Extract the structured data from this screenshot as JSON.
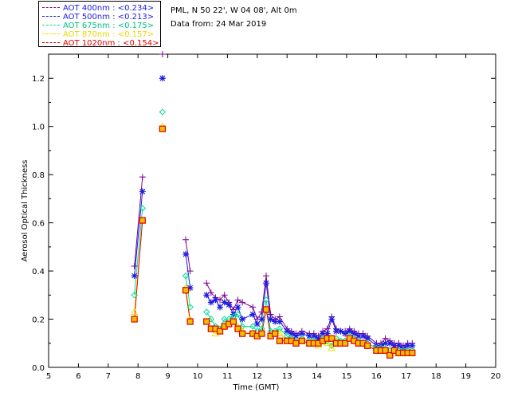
{
  "header": {
    "site": "PML, N 50 22', W 04 08', Alt 0m",
    "date": "Data from: 24 Mar 2019"
  },
  "legend": [
    {
      "label": "AOT  400nm : <0.234>",
      "color": "#7b0090"
    },
    {
      "label": "AOT  500nm : <0.213>",
      "color": "#1c1ce0"
    },
    {
      "label": "AOT  675nm : <0.175>",
      "color": "#00e090"
    },
    {
      "label": "AOT  870nm : <0.157>",
      "color": "#f0e000"
    },
    {
      "label": "AOT 1020nm : <0.154>",
      "color": "#e00000"
    }
  ],
  "chart_data": {
    "type": "scatter",
    "xlabel": "Time (GMT)",
    "ylabel": "Aerosol Optical Thickness",
    "xlim": [
      5,
      20
    ],
    "ylim": [
      0.0,
      1.3
    ],
    "xticks": [
      "5",
      "6",
      "7",
      "8",
      "9",
      "10",
      "11",
      "12",
      "13",
      "14",
      "15",
      "16",
      "17",
      "18",
      "19",
      "20"
    ],
    "yticks": [
      "0.0",
      "0.2",
      "0.4",
      "0.6",
      "0.8",
      "1.0",
      "1.2"
    ],
    "x": [
      7.88,
      8.15,
      8.82,
      9.6,
      9.75,
      10.3,
      10.45,
      10.6,
      10.75,
      10.9,
      11.05,
      11.2,
      11.35,
      11.5,
      11.85,
      12.0,
      12.15,
      12.3,
      12.45,
      12.6,
      12.75,
      13.0,
      13.15,
      13.3,
      13.5,
      13.75,
      13.9,
      14.05,
      14.2,
      14.35,
      14.5,
      14.65,
      14.8,
      14.95,
      15.1,
      15.25,
      15.4,
      15.55,
      15.7,
      16.0,
      16.15,
      16.3,
      16.45,
      16.6,
      16.75,
      16.9,
      17.05,
      17.2
    ],
    "series": [
      {
        "name": "AOT  400nm",
        "marker": "plus",
        "values": [
          0.42,
          0.79,
          1.3,
          0.53,
          0.4,
          0.35,
          0.31,
          0.29,
          0.28,
          0.3,
          0.27,
          0.24,
          0.28,
          0.27,
          0.25,
          0.2,
          0.23,
          0.38,
          0.22,
          0.2,
          0.21,
          0.16,
          0.15,
          0.14,
          0.15,
          0.14,
          0.14,
          0.13,
          0.15,
          0.16,
          0.21,
          0.16,
          0.15,
          0.15,
          0.16,
          0.15,
          0.14,
          0.14,
          0.13,
          0.1,
          0.1,
          0.12,
          0.11,
          0.1,
          0.1,
          0.09,
          0.1,
          0.1
        ]
      },
      {
        "name": "AOT  500nm",
        "marker": "asterisk",
        "values": [
          0.38,
          0.73,
          1.2,
          0.47,
          0.33,
          0.3,
          0.27,
          0.28,
          0.25,
          0.27,
          0.26,
          0.22,
          0.25,
          0.2,
          0.22,
          0.18,
          0.2,
          0.35,
          0.2,
          0.19,
          0.19,
          0.15,
          0.14,
          0.13,
          0.14,
          0.13,
          0.13,
          0.12,
          0.14,
          0.14,
          0.2,
          0.15,
          0.15,
          0.14,
          0.15,
          0.14,
          0.13,
          0.13,
          0.12,
          0.09,
          0.09,
          0.1,
          0.1,
          0.09,
          0.09,
          0.08,
          0.09,
          0.09
        ]
      },
      {
        "name": "AOT  675nm",
        "marker": "diamond",
        "values": [
          0.3,
          0.66,
          1.06,
          0.38,
          0.25,
          0.23,
          0.2,
          0.17,
          0.16,
          0.2,
          0.2,
          0.21,
          0.22,
          0.17,
          0.17,
          0.15,
          0.16,
          0.28,
          0.15,
          0.15,
          0.16,
          0.13,
          0.12,
          0.11,
          0.12,
          0.11,
          0.11,
          0.1,
          0.12,
          0.11,
          0.09,
          0.12,
          0.11,
          0.11,
          0.13,
          0.12,
          0.11,
          0.1,
          0.1,
          0.08,
          0.08,
          0.08,
          0.07,
          0.07,
          0.07,
          0.07,
          0.07,
          0.07
        ]
      },
      {
        "name": "AOT  870nm",
        "marker": "triangle",
        "values": [
          0.23,
          0.61,
          1.0,
          0.33,
          0.2,
          0.19,
          0.16,
          0.14,
          0.15,
          0.17,
          0.18,
          0.19,
          0.17,
          0.15,
          0.14,
          0.13,
          0.14,
          0.24,
          0.13,
          0.14,
          0.14,
          0.11,
          0.11,
          0.1,
          0.11,
          0.1,
          0.1,
          0.09,
          0.11,
          0.1,
          0.08,
          0.11,
          0.1,
          0.1,
          0.12,
          0.11,
          0.1,
          0.1,
          0.09,
          0.07,
          0.07,
          0.07,
          0.06,
          0.06,
          0.06,
          0.06,
          0.06,
          0.06
        ]
      },
      {
        "name": "AOT 1020nm",
        "marker": "square",
        "values": [
          0.2,
          0.61,
          0.99,
          0.32,
          0.19,
          0.19,
          0.16,
          0.16,
          0.15,
          0.17,
          0.18,
          0.19,
          0.16,
          0.14,
          0.14,
          0.13,
          0.14,
          0.24,
          0.13,
          0.14,
          0.11,
          0.11,
          0.11,
          0.1,
          0.11,
          0.1,
          0.1,
          0.1,
          0.11,
          0.12,
          0.12,
          0.1,
          0.1,
          0.1,
          0.12,
          0.11,
          0.1,
          0.1,
          0.09,
          0.07,
          0.07,
          0.07,
          0.05,
          0.07,
          0.06,
          0.06,
          0.06,
          0.06
        ]
      }
    ]
  }
}
